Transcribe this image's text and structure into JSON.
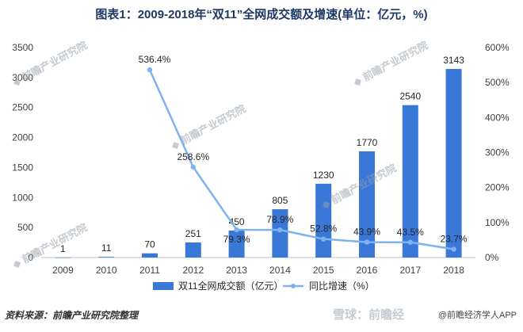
{
  "title": "图表1：2009-2018年“双11”全网成交额及增速(单位：亿元，%)",
  "source": "资料来源：前瞻产业研究院整理",
  "footer_right": "@前瞻经济学人APP",
  "watermark_footer": "雪球：前瞻经",
  "colors": {
    "bar": "#3a78d8",
    "line": "#7fb2ef",
    "title": "#1f3864"
  },
  "chart_data": {
    "type": "bar",
    "categories": [
      "2009",
      "2010",
      "2011",
      "2012",
      "2013",
      "2014",
      "2015",
      "2016",
      "2017",
      "2018"
    ],
    "series": [
      {
        "name": "双11全网成交额（亿元）",
        "type": "bar",
        "axis": "left",
        "values": [
          1,
          11,
          70,
          251,
          450,
          805,
          1230,
          1770,
          2540,
          3143
        ],
        "labels": [
          "1",
          "11",
          "70",
          "251",
          "450",
          "805",
          "1230",
          "1770",
          "2540",
          "3143"
        ]
      },
      {
        "name": "同比增速（%）",
        "type": "line",
        "axis": "right",
        "values": [
          null,
          null,
          536.4,
          258.6,
          79.3,
          78.9,
          52.8,
          43.9,
          43.5,
          23.7
        ],
        "labels": [
          "",
          "",
          "536.4%",
          "258.6%",
          "79.3%",
          "78.9%",
          "52.8%",
          "43.9%",
          "43.5%",
          "23.7%"
        ]
      }
    ],
    "ylim_left": [
      0,
      3500
    ],
    "ylim_right": [
      0,
      600
    ],
    "yticks_left": [
      "0",
      "500",
      "1000",
      "1500",
      "2000",
      "2500",
      "3000",
      "3500"
    ],
    "yticks_right": [
      "0%",
      "100%",
      "200%",
      "300%",
      "400%",
      "500%",
      "600%"
    ],
    "legend_position": "bottom",
    "grid": false
  }
}
